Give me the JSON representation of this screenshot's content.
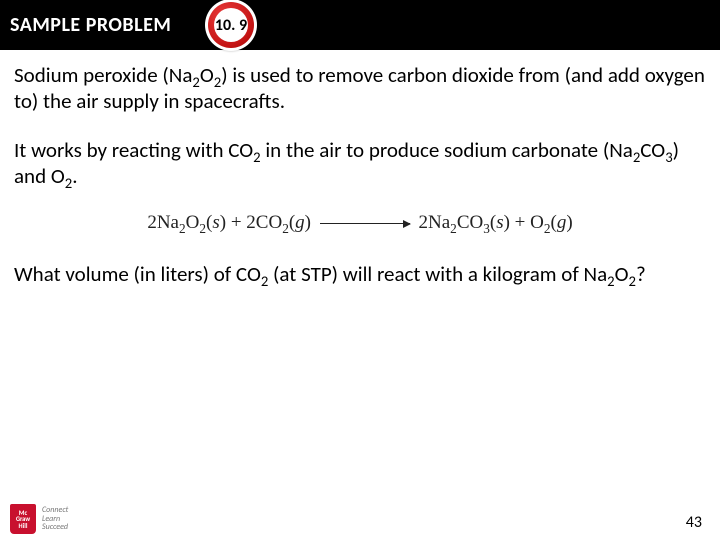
{
  "header": {
    "label": "SAMPLE PROBLEM",
    "badge_number": "10. 9",
    "bar_color": "#000000",
    "badge_outer_color": "#ffffff",
    "badge_ring_color": "#c41414",
    "badge_inner_color": "#ffffff",
    "label_color": "#ffffff",
    "label_fontsize": 20
  },
  "body": {
    "fontsize": 21,
    "text_color": "#000000",
    "p1_a": "Sodium peroxide (Na",
    "p1_b": "O",
    "p1_c": ") is used to remove carbon dioxide from (and add oxygen to) the air supply in spacecrafts.",
    "p2_a": "It works by reacting with CO",
    "p2_b": " in the air to produce sodium carbonate (Na",
    "p2_c": "CO",
    "p2_d": ") and O",
    "p2_e": ".",
    "p3_a": "What volume (in liters) of CO",
    "p3_b": " (at STP) will react with a kilogram of Na",
    "p3_c": "O",
    "p3_d": "?",
    "sub2": "2",
    "sub3": "3"
  },
  "equation": {
    "lhs_a": "2Na",
    "lhs_b": "O",
    "lhs_c": "(",
    "lhs_state1": "s",
    "lhs_d": ") + 2CO",
    "lhs_state2": "g",
    "rhs_a": "2Na",
    "rhs_b": "CO",
    "rhs_c": "(",
    "rhs_state3": "s",
    "rhs_d": ") + O",
    "rhs_state4": "g",
    "close": ")",
    "sub2": "2",
    "sub3": "3",
    "font_family": "Times New Roman",
    "fontsize": 19
  },
  "footer": {
    "page_number": "43",
    "logo_lines": [
      "Mc",
      "Graw",
      "Hill"
    ],
    "tagline_l1": "Connect",
    "tagline_l2": "Learn",
    "tagline_l3": "Succeed",
    "logo_bg": "#c8102e"
  }
}
